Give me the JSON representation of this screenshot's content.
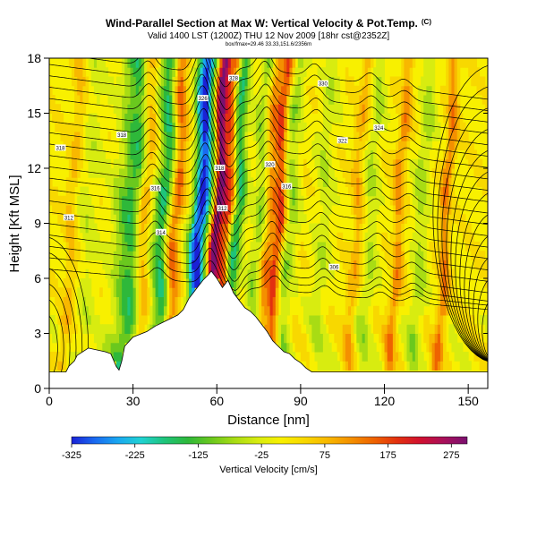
{
  "chart_data": {
    "type": "heatmap",
    "title": "Wind-Parallel Section at Max W: Vertical Velocity & Pot.Temp.",
    "title_mark": "(C)",
    "subtitle": "Valid 1400 LST (1200Z) THU 12 Nov 2009 [18hr cst@2352Z]",
    "subtitle2": "box/fmax=29.46 33.33,151.6/2356m",
    "xlabel": "Distance [nm]",
    "ylabel": "Height [Kft MSL]",
    "xlim": [
      0,
      157
    ],
    "ylim": [
      0,
      18
    ],
    "x_ticks": [
      0,
      30,
      60,
      90,
      120,
      150
    ],
    "y_ticks": [
      0,
      3,
      6,
      9,
      12,
      15,
      18
    ],
    "colorbar": {
      "label": "Vertical Velocity [cm/s]",
      "range": [
        -325,
        300
      ],
      "tick_values": [
        -325,
        -225,
        -125,
        -25,
        75,
        175,
        275
      ],
      "colors": [
        "#1a22d6",
        "#1a6af0",
        "#1aa8f0",
        "#20d2d2",
        "#1ec47a",
        "#2eb83a",
        "#6ac81e",
        "#a8dc14",
        "#d8ec10",
        "#f8f000",
        "#f8d800",
        "#f8b800",
        "#f49000",
        "#ee6200",
        "#e23010",
        "#d01030",
        "#a8105a",
        "#7a1070"
      ]
    },
    "velocity_bands": [
      {
        "x": 30,
        "w": 6,
        "v": -150
      },
      {
        "x": 34,
        "w": 2.5,
        "v": 150
      },
      {
        "x": 41,
        "w": 3,
        "v": -160
      },
      {
        "x": 45,
        "w": 2.5,
        "v": 140
      },
      {
        "x": 54,
        "w": 3,
        "v": -320
      },
      {
        "x": 60,
        "w": 1.8,
        "v": 290
      },
      {
        "x": 63.5,
        "w": 2,
        "v": 170
      },
      {
        "x": 67,
        "w": 2.5,
        "v": -160
      },
      {
        "x": 75,
        "w": 2.5,
        "v": -80
      },
      {
        "x": 78.5,
        "w": 2,
        "v": 100
      },
      {
        "x": 82,
        "w": 2,
        "v": 160
      },
      {
        "x": 86,
        "w": 2.5,
        "v": -80
      },
      {
        "x": 98,
        "w": 3,
        "v": -50
      },
      {
        "x": 110,
        "w": 2,
        "v": 70
      },
      {
        "x": 115,
        "w": 2.5,
        "v": -60
      },
      {
        "x": 125,
        "w": 2,
        "v": 100
      },
      {
        "x": 133,
        "w": 2.5,
        "v": -70
      },
      {
        "x": 142,
        "w": 2,
        "v": 110
      },
      {
        "x": 14,
        "w": 3,
        "v": -40
      },
      {
        "x": 8,
        "w": 2,
        "v": 60
      }
    ],
    "terrain": [
      [
        0,
        0.9
      ],
      [
        6,
        0.9
      ],
      [
        7,
        1.2
      ],
      [
        9,
        1.5
      ],
      [
        10,
        1.8
      ],
      [
        14,
        2.2
      ],
      [
        20,
        2.0
      ],
      [
        22,
        1.9
      ],
      [
        24,
        1.2
      ],
      [
        25,
        1.0
      ],
      [
        26,
        1.5
      ],
      [
        27,
        2.3
      ],
      [
        30,
        2.8
      ],
      [
        35,
        3.1
      ],
      [
        38,
        3.4
      ],
      [
        42,
        3.7
      ],
      [
        46,
        4.0
      ],
      [
        48,
        4.3
      ],
      [
        50,
        4.9
      ],
      [
        52,
        5.3
      ],
      [
        55,
        5.9
      ],
      [
        57,
        6.2
      ],
      [
        58,
        6.4
      ],
      [
        60,
        6.0
      ],
      [
        62,
        5.5
      ],
      [
        64,
        5.9
      ],
      [
        66,
        5.2
      ],
      [
        68,
        4.8
      ],
      [
        70,
        4.4
      ],
      [
        72,
        4.2
      ],
      [
        74,
        3.9
      ],
      [
        76,
        3.5
      ],
      [
        78,
        3.1
      ],
      [
        80,
        2.6
      ],
      [
        82,
        2.3
      ],
      [
        84,
        2.0
      ],
      [
        86,
        1.9
      ],
      [
        88,
        1.6
      ],
      [
        90,
        1.4
      ],
      [
        92,
        1.1
      ],
      [
        94,
        0.9
      ],
      [
        157,
        0.9
      ]
    ],
    "contour_labels": [
      {
        "x": 26,
        "y": 13.8,
        "text": "318"
      },
      {
        "x": 38,
        "y": 10.9,
        "text": "316"
      },
      {
        "x": 40,
        "y": 8.5,
        "text": "314"
      },
      {
        "x": 55,
        "y": 15.8,
        "text": "326"
      },
      {
        "x": 61,
        "y": 12.0,
        "text": "318"
      },
      {
        "x": 62,
        "y": 9.8,
        "text": "312"
      },
      {
        "x": 66,
        "y": 16.9,
        "text": "328"
      },
      {
        "x": 79,
        "y": 12.2,
        "text": "320"
      },
      {
        "x": 85,
        "y": 11.0,
        "text": "316"
      },
      {
        "x": 98,
        "y": 16.6,
        "text": "330"
      },
      {
        "x": 105,
        "y": 13.5,
        "text": "322"
      },
      {
        "x": 118,
        "y": 14.2,
        "text": "324"
      },
      {
        "x": 102,
        "y": 6.6,
        "text": "306"
      },
      {
        "x": 4,
        "y": 13.1,
        "text": "318"
      },
      {
        "x": 7,
        "y": 9.3,
        "text": "312"
      }
    ]
  }
}
